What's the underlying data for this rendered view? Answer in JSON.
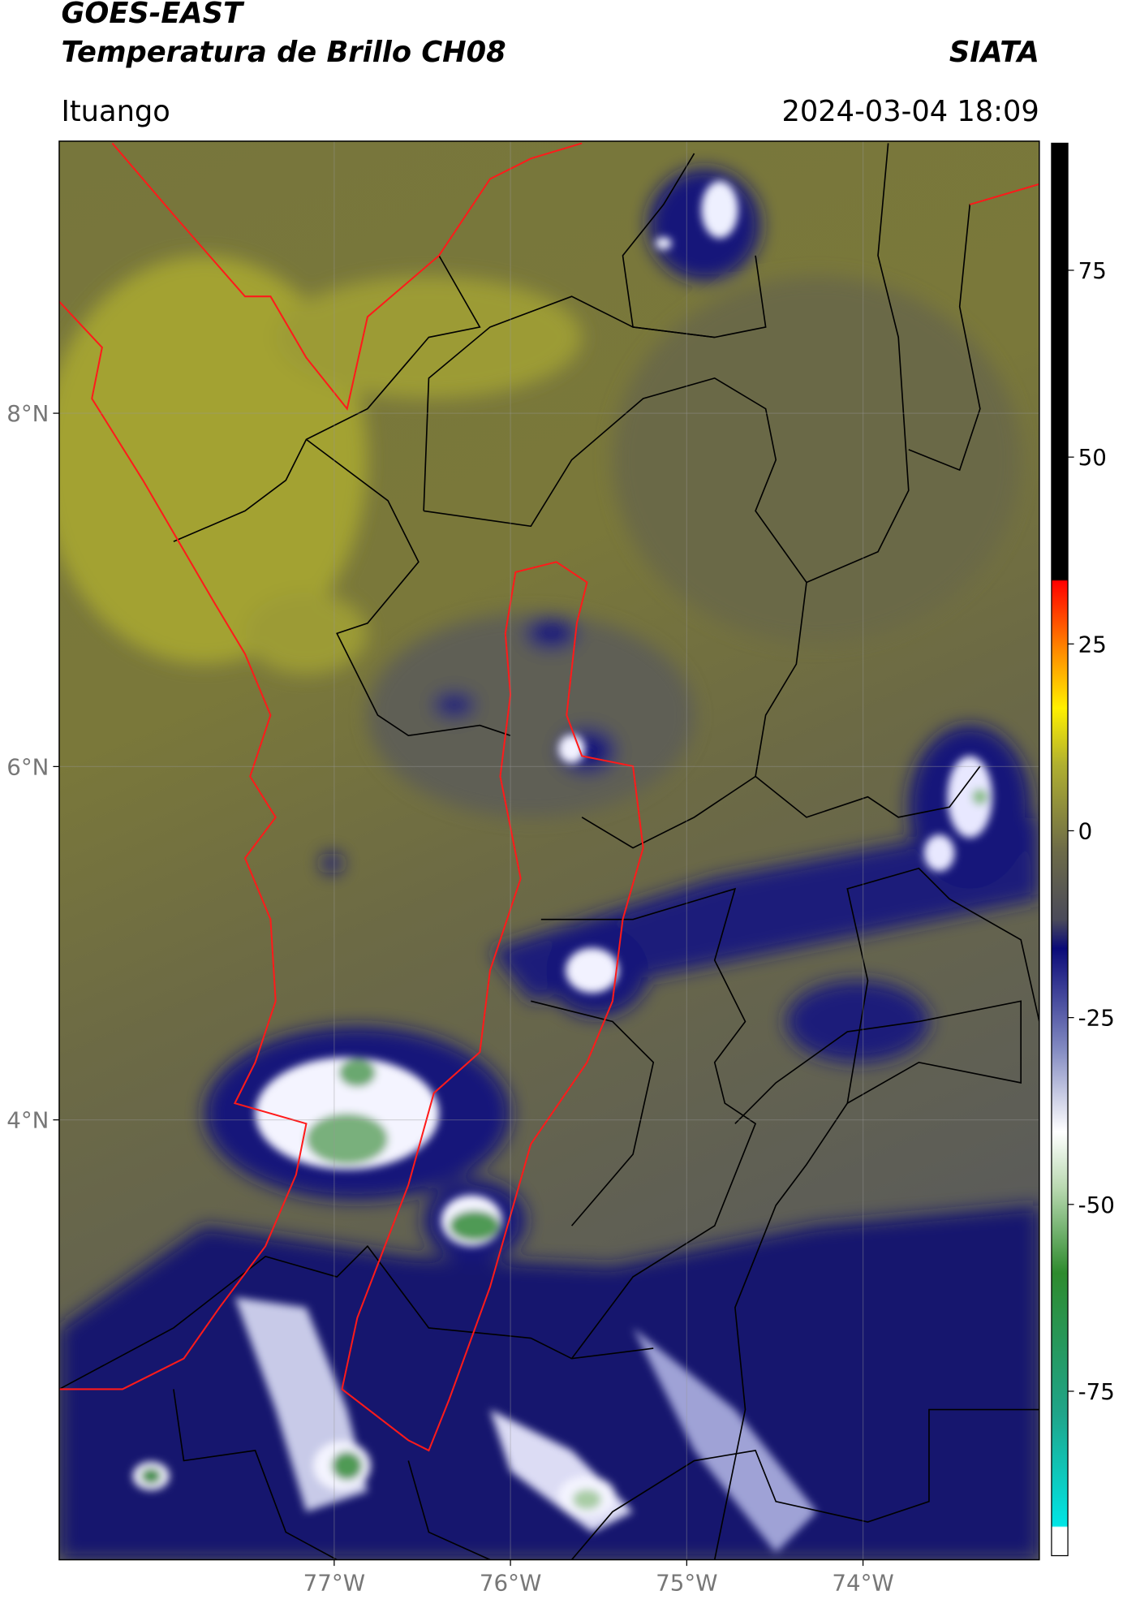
{
  "header": {
    "title": "GOES-EAST",
    "subtitle": "Temperatura de Brillo CH08",
    "source": "SIATA",
    "location": "Ituango",
    "datetime": "2024-03-04 18:09"
  },
  "map": {
    "lon_range": [
      -78.56,
      -73.0
    ],
    "lat_range": [
      1.51,
      9.54
    ],
    "lat_ticks": [
      {
        "value": 8,
        "label": "8°N"
      },
      {
        "value": 6,
        "label": "6°N"
      },
      {
        "value": 4,
        "label": "4°N"
      }
    ],
    "lon_ticks": [
      {
        "value": -77,
        "label": "77°W"
      },
      {
        "value": -76,
        "label": "76°W"
      },
      {
        "value": -75,
        "label": "75°W"
      },
      {
        "value": -74,
        "label": "74°W"
      }
    ]
  },
  "colorbar": {
    "range": [
      -97,
      92
    ],
    "ticks": [
      75,
      50,
      25,
      0,
      -25,
      -50,
      -75
    ]
  }
}
